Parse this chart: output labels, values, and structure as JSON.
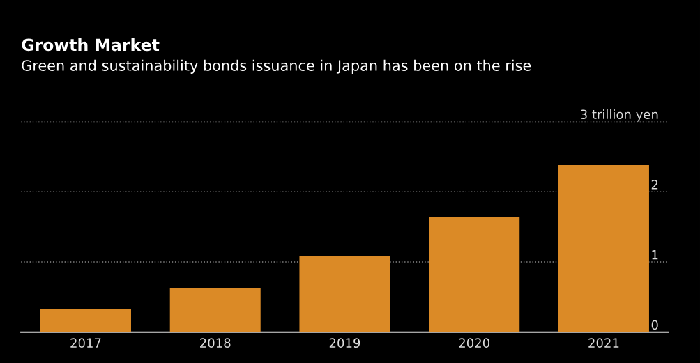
{
  "chart_data": {
    "type": "bar",
    "title": "Growth Market",
    "subtitle": "Green and sustainability bonds issuance in Japan has been on the rise",
    "categories": [
      "2017",
      "2018",
      "2019",
      "2020",
      "2021"
    ],
    "values": [
      0.33,
      0.63,
      1.08,
      1.64,
      2.38
    ],
    "color": "#db8a26",
    "ylim": [
      0,
      3
    ],
    "yticks": [
      0,
      1,
      2,
      {
        "value": 3,
        "label": "3 trillion yen"
      }
    ],
    "grid": "y"
  }
}
